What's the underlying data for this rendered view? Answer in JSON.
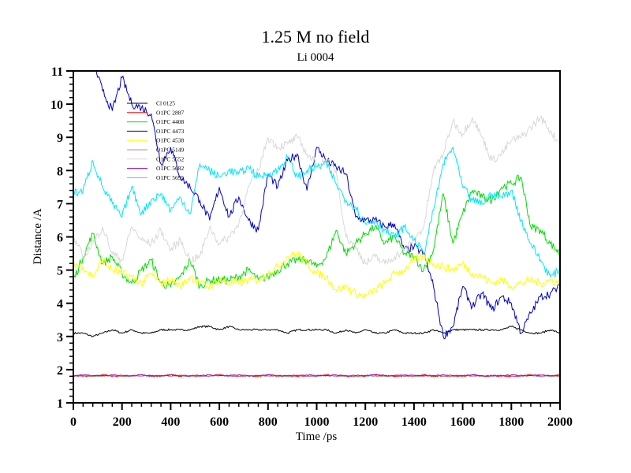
{
  "chart_data": {
    "type": "line",
    "title": "1.25 M no field",
    "subtitle": "Li 0004",
    "xlabel": "Time /ps",
    "ylabel": "Distance /A",
    "xlim": [
      0,
      2000
    ],
    "ylim": [
      1,
      11
    ],
    "xticks": [
      0,
      200,
      400,
      600,
      800,
      1000,
      1200,
      1400,
      1600,
      1800,
      2000
    ],
    "yticks": [
      1,
      2,
      3,
      4,
      5,
      6,
      7,
      8,
      9,
      10,
      11
    ],
    "xtick_labels": [
      "0",
      "200",
      "400",
      "600",
      "800",
      "1000",
      "1200",
      "1400",
      "1600",
      "1800",
      "2000"
    ],
    "ytick_labels": [
      "1",
      "2",
      "3",
      "4",
      "5",
      "6",
      "7",
      "8",
      "9",
      "10",
      "11"
    ],
    "grid": false,
    "legend_position": "top-left",
    "x": [
      0,
      40,
      80,
      120,
      160,
      200,
      240,
      280,
      320,
      360,
      400,
      440,
      480,
      520,
      560,
      600,
      640,
      680,
      720,
      760,
      800,
      840,
      880,
      920,
      960,
      1000,
      1040,
      1080,
      1120,
      1160,
      1200,
      1240,
      1280,
      1320,
      1360,
      1400,
      1440,
      1480,
      1520,
      1560,
      1600,
      1640,
      1680,
      1720,
      1760,
      1800,
      1840,
      1880,
      1920,
      1960,
      2000
    ],
    "series": [
      {
        "name": "Cl 0125",
        "color": "#000000",
        "values": [
          3.1,
          3.1,
          3.0,
          3.1,
          3.2,
          3.1,
          3.2,
          3.1,
          3.1,
          3.2,
          3.2,
          3.2,
          3.2,
          3.3,
          3.3,
          3.2,
          3.3,
          3.2,
          3.2,
          3.2,
          3.2,
          3.2,
          3.1,
          3.2,
          3.2,
          3.2,
          3.2,
          3.1,
          3.2,
          3.1,
          3.2,
          3.1,
          3.1,
          3.2,
          3.1,
          3.1,
          3.1,
          3.2,
          3.1,
          3.2,
          3.2,
          3.2,
          3.2,
          3.2,
          3.2,
          3.3,
          3.2,
          3.1,
          3.1,
          3.2,
          3.1
        ]
      },
      {
        "name": "O1PC 2887",
        "color": "#ff0000",
        "values": [
          1.8,
          1.8,
          1.8,
          1.85,
          1.8,
          1.8,
          1.8,
          1.85,
          1.8,
          1.8,
          1.85,
          1.8,
          1.8,
          1.8,
          1.8,
          1.85,
          1.8,
          1.8,
          1.8,
          1.8,
          1.85,
          1.8,
          1.8,
          1.8,
          1.8,
          1.8,
          1.85,
          1.8,
          1.8,
          1.8,
          1.8,
          1.85,
          1.8,
          1.8,
          1.8,
          1.8,
          1.85,
          1.8,
          1.8,
          1.8,
          1.8,
          1.85,
          1.8,
          1.8,
          1.8,
          1.8,
          1.8,
          1.85,
          1.8,
          1.8,
          1.85
        ]
      },
      {
        "name": "O1PC 4408",
        "color": "#00dd00",
        "values": [
          4.7,
          5.4,
          6.1,
          5.2,
          5.4,
          4.9,
          4.6,
          5.0,
          5.3,
          4.6,
          4.5,
          4.8,
          5.3,
          4.5,
          4.7,
          4.7,
          4.7,
          4.8,
          5.0,
          4.7,
          4.8,
          5.0,
          5.2,
          5.3,
          5.3,
          5.1,
          5.4,
          6.2,
          5.5,
          5.8,
          6.1,
          6.3,
          5.8,
          6.0,
          5.5,
          5.4,
          5.0,
          5.6,
          7.3,
          5.8,
          6.7,
          7.4,
          7.2,
          7.1,
          7.5,
          7.6,
          7.8,
          6.3,
          6.2,
          5.8,
          5.5
        ]
      },
      {
        "name": "O1PC 4473",
        "color": "#0000cc",
        "values": [
          11.5,
          11.5,
          11.3,
          10.4,
          9.8,
          10.8,
          10.0,
          9.9,
          9.7,
          8.2,
          8.7,
          7.8,
          7.5,
          7.1,
          6.5,
          7.5,
          6.6,
          7.2,
          6.5,
          6.2,
          7.9,
          7.5,
          8.3,
          8.5,
          7.4,
          8.7,
          8.3,
          8.1,
          7.9,
          6.6,
          6.5,
          6.5,
          6.3,
          6.4,
          5.6,
          5.7,
          5.5,
          4.5,
          3.0,
          3.3,
          4.5,
          3.9,
          4.3,
          3.8,
          4.2,
          4.0,
          3.1,
          3.7,
          4.2,
          4.3,
          4.5
        ]
      },
      {
        "name": "O1PC 4538",
        "color": "#ffff00",
        "values": [
          5.2,
          5.1,
          4.8,
          5.3,
          5.0,
          4.9,
          4.8,
          4.6,
          4.9,
          4.6,
          4.7,
          4.5,
          4.8,
          4.6,
          4.5,
          4.7,
          4.6,
          4.6,
          4.7,
          4.7,
          4.9,
          5.1,
          5.4,
          5.5,
          5.2,
          4.9,
          4.8,
          4.4,
          4.5,
          4.3,
          4.2,
          4.4,
          4.6,
          4.9,
          5.0,
          5.3,
          5.4,
          5.2,
          5.1,
          5.0,
          5.2,
          4.9,
          4.8,
          4.6,
          4.7,
          4.5,
          4.6,
          4.7,
          4.6,
          4.7,
          4.6
        ]
      },
      {
        "name": "O1PC 5149",
        "color": "#c09090",
        "values": [
          1.8,
          1.82,
          1.8,
          1.8,
          1.82,
          1.8,
          1.8,
          1.8,
          1.82,
          1.8,
          1.8,
          1.82,
          1.8,
          1.8,
          1.8,
          1.82,
          1.8,
          1.8,
          1.8,
          1.82,
          1.8,
          1.8,
          1.8,
          1.82,
          1.8,
          1.8,
          1.82,
          1.8,
          1.8,
          1.8,
          1.82,
          1.8,
          1.8,
          1.82,
          1.8,
          1.8,
          1.8,
          1.82,
          1.8,
          1.8,
          1.82,
          1.8,
          1.8,
          1.8,
          1.82,
          1.8,
          1.8,
          1.82,
          1.8,
          1.8,
          1.8
        ]
      },
      {
        "name": "O1PC 5552",
        "color": "#d8d8d8",
        "values": [
          6.0,
          5.4,
          5.8,
          6.3,
          5.5,
          5.3,
          6.3,
          5.9,
          5.8,
          6.2,
          5.6,
          5.9,
          5.3,
          5.4,
          6.3,
          5.8,
          6.0,
          6.4,
          7.5,
          8.0,
          9.0,
          8.7,
          8.8,
          9.0,
          8.5,
          8.2,
          8.3,
          8.0,
          6.0,
          5.7,
          5.2,
          5.4,
          5.2,
          5.4,
          5.6,
          5.9,
          6.3,
          8.0,
          8.5,
          9.5,
          9.1,
          9.6,
          9.0,
          8.3,
          8.5,
          8.9,
          9.0,
          9.3,
          9.6,
          9.2,
          8.8
        ]
      },
      {
        "name": "O1PC 5682",
        "color": "#8800cc",
        "values": [
          1.82,
          1.84,
          1.82,
          1.82,
          1.84,
          1.82,
          1.82,
          1.84,
          1.82,
          1.82,
          1.84,
          1.82,
          1.82,
          1.82,
          1.84,
          1.82,
          1.82,
          1.84,
          1.82,
          1.82,
          1.84,
          1.82,
          1.82,
          1.82,
          1.84,
          1.82,
          1.82,
          1.84,
          1.82,
          1.82,
          1.82,
          1.84,
          1.82,
          1.82,
          1.84,
          1.82,
          1.82,
          1.82,
          1.84,
          1.82,
          1.82,
          1.84,
          1.82,
          1.82,
          1.82,
          1.84,
          1.82,
          1.82,
          1.84,
          1.82,
          1.82
        ]
      },
      {
        "name": "O1PC 5695",
        "color": "#00e5ff",
        "values": [
          7.3,
          7.4,
          8.3,
          7.5,
          7.0,
          6.6,
          7.5,
          6.7,
          7.1,
          7.3,
          6.8,
          7.2,
          6.7,
          8.2,
          8.0,
          7.8,
          8.0,
          7.9,
          8.1,
          7.8,
          7.9,
          8.0,
          8.4,
          7.8,
          8.0,
          8.1,
          8.2,
          7.6,
          7.1,
          6.9,
          6.4,
          6.5,
          6.2,
          6.0,
          6.3,
          5.9,
          5.5,
          6.8,
          8.2,
          8.7,
          7.5,
          7.1,
          7.0,
          7.3,
          7.2,
          7.4,
          6.5,
          5.8,
          5.3,
          4.8,
          5.0
        ]
      }
    ]
  }
}
